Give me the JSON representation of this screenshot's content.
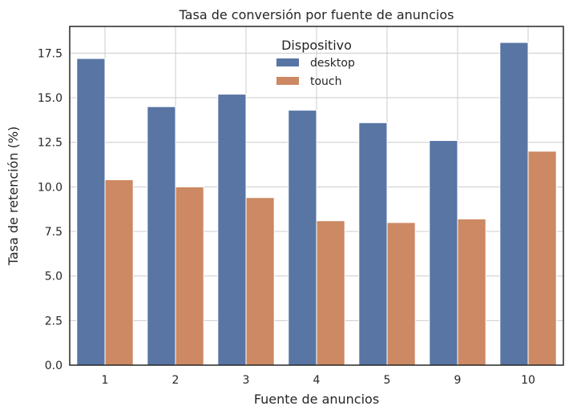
{
  "chart_data": {
    "type": "bar",
    "title": "Tasa de conversión por fuente de anuncios",
    "xlabel": "Fuente de anuncios",
    "ylabel": "Tasa de retención (%)",
    "categories": [
      "1",
      "2",
      "3",
      "4",
      "5",
      "9",
      "10"
    ],
    "series": [
      {
        "name": "desktop",
        "color": "#5875a4",
        "values": [
          17.2,
          14.5,
          15.2,
          14.3,
          13.6,
          12.6,
          18.1
        ]
      },
      {
        "name": "touch",
        "color": "#cc8963",
        "values": [
          10.4,
          10.0,
          9.4,
          8.1,
          8.0,
          8.2,
          12.0
        ]
      }
    ],
    "ylim": [
      0,
      19
    ],
    "yticks": [
      "0.0",
      "2.5",
      "5.0",
      "7.5",
      "10.0",
      "12.5",
      "15.0",
      "17.5"
    ],
    "grid": true,
    "legend": {
      "title": "Dispositivo",
      "placement": "upper-center"
    }
  }
}
